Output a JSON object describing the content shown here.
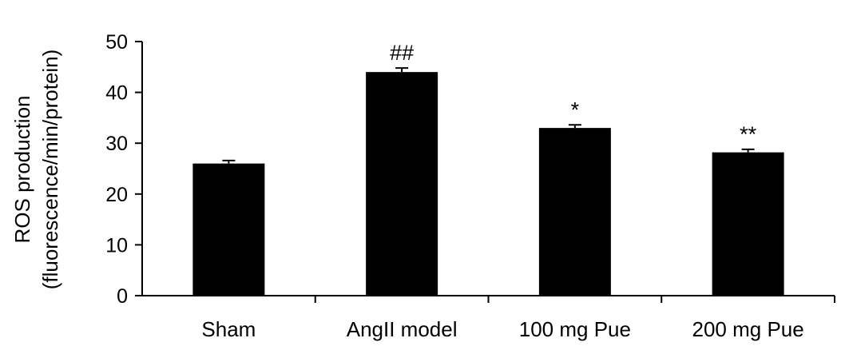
{
  "chart_data": {
    "type": "bar",
    "title": "",
    "xlabel": "",
    "ylabel_lines": [
      "ROS production",
      "(fluorescence/min/protein)"
    ],
    "categories": [
      "Sham",
      "AngII model",
      "100 mg Pue",
      "200 mg Pue"
    ],
    "values": [
      26,
      44,
      33,
      28.2
    ],
    "errors": [
      0.6,
      0.8,
      0.6,
      0.6
    ],
    "significance": [
      "",
      "##",
      "*",
      "**"
    ],
    "ylim": [
      0,
      50
    ],
    "yticks": [
      0,
      10,
      20,
      30,
      40,
      50
    ],
    "grid": false,
    "legend": "none",
    "bar_color": "#000000"
  }
}
